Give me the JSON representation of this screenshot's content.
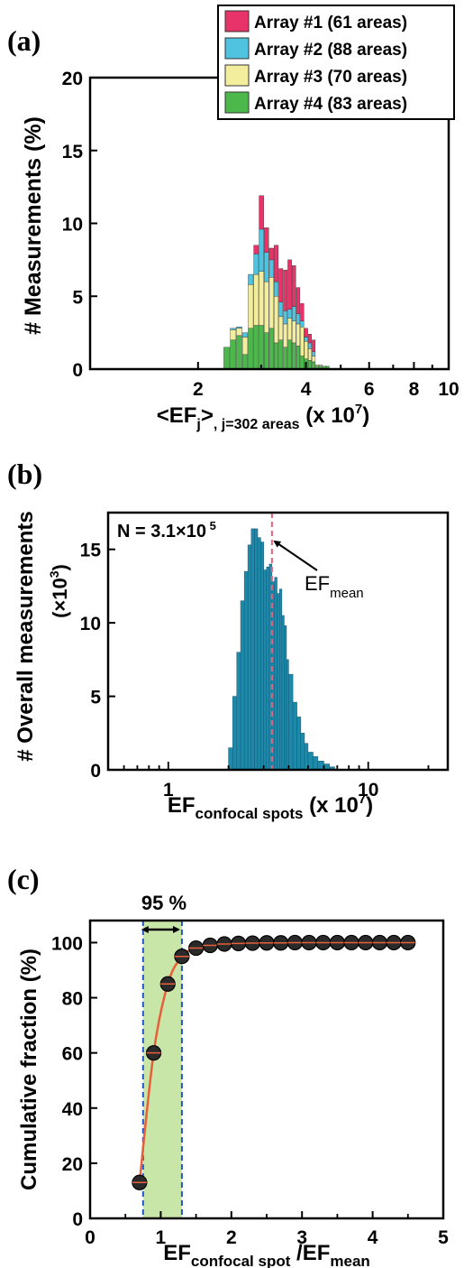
{
  "chart_data": [
    {
      "panel_label": "(a)",
      "type": "bar",
      "stacked": true,
      "xscale": "log",
      "xlim": [
        1,
        10
      ],
      "ylim": [
        0,
        20
      ],
      "xticks": [
        2,
        4,
        6,
        8,
        10
      ],
      "yticks": [
        0,
        5,
        10,
        15,
        20
      ],
      "ylabel": "# Measurements (%)",
      "xlabel": {
        "main": "<EF",
        "sub1": "j",
        "mid": ">",
        "sub2": ", j=302 areas",
        "tail": " (x 10",
        "sup": "7",
        "end": ")"
      },
      "legend_position": "top-right",
      "bar_edges": [
        2.36,
        2.46,
        2.56,
        2.66,
        2.76,
        2.86,
        2.96,
        3.06,
        3.16,
        3.26,
        3.36,
        3.46,
        3.56,
        3.66,
        3.76,
        3.86,
        3.96,
        4.06,
        4.16,
        4.26,
        4.36,
        4.46,
        4.56,
        4.66,
        4.76,
        4.86,
        4.96
      ],
      "series": [
        {
          "name": "Array #4 (83 areas)",
          "color": "#4CB84C",
          "values": [
            1.5,
            2.0,
            2.3,
            1.0,
            2.8,
            3.0,
            3.0,
            2.5,
            2.8,
            1.8,
            2.0,
            1.5,
            2.0,
            1.8,
            1.6,
            0.9,
            0.7,
            0.6,
            0.5,
            0.2,
            0.2,
            0.2,
            0.2,
            0.0,
            0.0,
            0.0
          ]
        },
        {
          "name": "Array #3 (70 areas)",
          "color": "#F2EE9E",
          "values": [
            0,
            0.7,
            0.5,
            1.2,
            3.0,
            3.5,
            3.7,
            3.5,
            3.5,
            3.2,
            1.6,
            1.6,
            1.5,
            1.5,
            1.5,
            2.0,
            1.2,
            0.8,
            0.4,
            0.1,
            0.1,
            0.0,
            0.0,
            0.0,
            0.0,
            0.0
          ]
        },
        {
          "name": "Array #2 (88 areas)",
          "color": "#4FC3E0",
          "values": [
            0,
            0.1,
            0.1,
            0.3,
            0.7,
            1.4,
            2.9,
            2.0,
            1.2,
            1.0,
            1.0,
            0.9,
            0.6,
            1.0,
            0.7,
            0.4,
            0.3,
            0.4,
            0.3,
            0.0,
            0.0,
            0.0,
            0.0,
            0.0,
            0.0,
            0.0
          ]
        },
        {
          "name": "Array #1 (61 areas)",
          "color": "#E8336A",
          "values": [
            0,
            0,
            0,
            0,
            0,
            0.6,
            2.3,
            1.7,
            0.8,
            2.5,
            2.3,
            2.8,
            3.4,
            2.8,
            1.8,
            1.2,
            0.6,
            0.6,
            0.8,
            0.0,
            0.0,
            0.0,
            0.0,
            0.0,
            0.0,
            0.0
          ]
        }
      ]
    },
    {
      "panel_label": "(b)",
      "type": "bar",
      "xscale": "log",
      "xlim": [
        0.5,
        25
      ],
      "ylim": [
        0,
        17.5
      ],
      "xticks": [
        1,
        10
      ],
      "yticks": [
        0,
        5,
        10,
        15
      ],
      "ylabel_line1": "# Overall measurements",
      "ylabel_line2_pre": "(×10",
      "ylabel_line2_sup": "3",
      "ylabel_line2_post": ")",
      "xlabel": {
        "main": "EF",
        "sub": "confocal spots",
        "tail": " (x 10",
        "sup": "7",
        "end": ")"
      },
      "bar_color": "#1E8AAA",
      "bar_edge_color": "#16577A",
      "hist_edges": [
        2.0,
        2.1,
        2.2,
        2.3,
        2.4,
        2.5,
        2.6,
        2.7,
        2.8,
        2.9,
        3.0,
        3.1,
        3.2,
        3.3,
        3.4,
        3.5,
        3.6,
        3.7,
        3.8,
        3.9,
        4.0,
        4.2,
        4.4,
        4.6,
        4.8,
        5.0,
        5.3,
        5.6,
        6.0,
        6.4,
        6.8
      ],
      "hist_values": [
        1.5,
        5.0,
        8.0,
        11.5,
        13.5,
        15.3,
        16.4,
        16.4,
        15.8,
        15.5,
        13.6,
        13.8,
        14.0,
        12.8,
        13.1,
        12.0,
        12.3,
        10.5,
        9.8,
        7.5,
        6.5,
        4.6,
        3.6,
        2.5,
        1.8,
        1.2,
        0.9,
        0.6,
        0.4,
        0.2
      ],
      "annotation_n_pre": "N = 3.1×10",
      "annotation_n_sup": " 5",
      "mean_x": 3.3,
      "mean_line_color": "#E8607A",
      "mean_label_main": "EF",
      "mean_label_sub": "mean"
    },
    {
      "panel_label": "(c)",
      "type": "scatter",
      "xlim": [
        0,
        5
      ],
      "ylim": [
        0,
        108
      ],
      "xticks": [
        0,
        1,
        2,
        3,
        4,
        5
      ],
      "yticks": [
        0,
        20,
        40,
        60,
        80,
        100
      ],
      "ylabel": "Cumulative fraction (%)",
      "xlabel": {
        "main": "EF",
        "sub": "confocal spot",
        "tail": " /EF",
        "sub2": "mean"
      },
      "points": {
        "x": [
          0.7,
          0.9,
          1.1,
          1.3,
          1.5,
          1.7,
          1.9,
          2.1,
          2.3,
          2.5,
          2.7,
          2.9,
          3.1,
          3.3,
          3.5,
          3.7,
          3.9,
          4.1,
          4.3,
          4.5
        ],
        "y": [
          13,
          60,
          85,
          95,
          98,
          99,
          99.5,
          99.7,
          99.8,
          99.9,
          99.9,
          100,
          100,
          100,
          100,
          100,
          100,
          100,
          100,
          100
        ]
      },
      "fit_color": "#E8603A",
      "region_x": [
        0.75,
        1.3
      ],
      "region_color": "#C8E6A8",
      "boundary_color": "#2255CC",
      "region_label": "95 %"
    }
  ]
}
